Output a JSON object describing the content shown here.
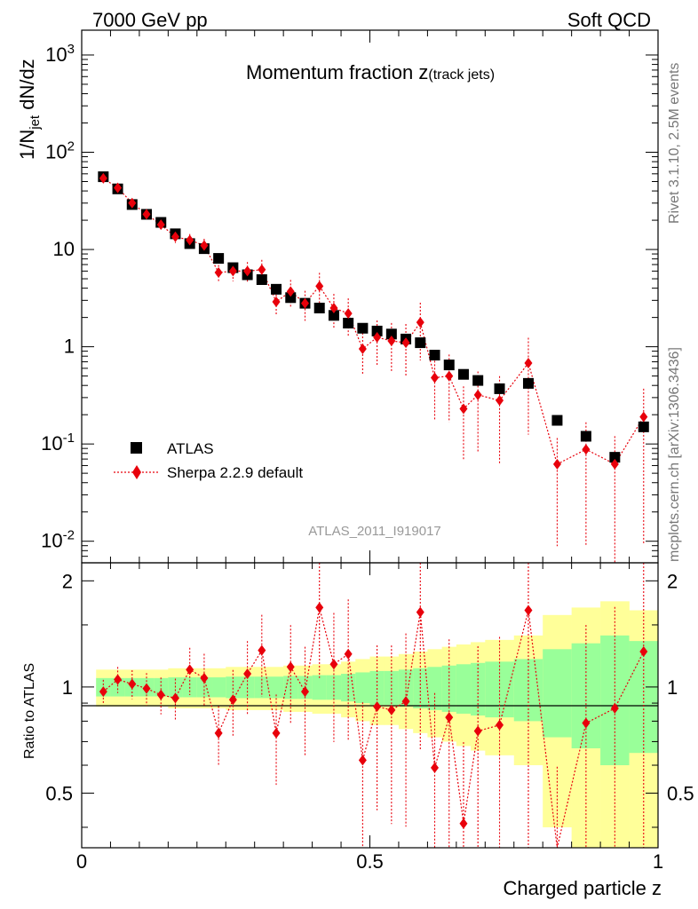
{
  "header": {
    "left": "7000 GeV pp",
    "right": "Soft QCD"
  },
  "side": {
    "rivet": "Rivet 3.1.10,  2.5M events",
    "mcplots": "mcplots.cern.ch [arXiv:1306.3436]"
  },
  "colors": {
    "atlas": "#000000",
    "mc": "#e8000b",
    "band_inner": "#99ff99",
    "band_outer": "#ffff99"
  },
  "chart_data": [
    {
      "type": "scatter",
      "title": "Momentum fraction z(track jets)",
      "title_main": "Momentum fraction z",
      "title_sub": "(track jets)",
      "ylabel": "1/N_jet dN/dz",
      "ylabel_main": "1/N",
      "ylabel_sub": "jet",
      "ylabel_tail": " dN/dz",
      "yscale": "log",
      "xlim": [
        0,
        1
      ],
      "ylim": [
        0.006,
        1800
      ],
      "ytick_labels": [
        "10^-2",
        "10^-1",
        "1",
        "10",
        "10^2",
        "10^3"
      ],
      "watermark": "ATLAS_2011_I919017",
      "legend": {
        "position": "bottom-left",
        "atlas": "ATLAS",
        "mc": "Sherpa 2.2.9 default"
      },
      "x": [
        0.0375,
        0.0625,
        0.0875,
        0.1125,
        0.1375,
        0.1625,
        0.1875,
        0.2125,
        0.2375,
        0.2625,
        0.2875,
        0.3125,
        0.3375,
        0.3625,
        0.3875,
        0.4125,
        0.4375,
        0.4625,
        0.4875,
        0.5125,
        0.5375,
        0.5625,
        0.5875,
        0.6125,
        0.6375,
        0.6625,
        0.6875,
        0.725,
        0.775,
        0.825,
        0.875,
        0.925,
        0.975
      ],
      "series": [
        {
          "name": "ATLAS",
          "values": [
            56,
            42,
            29,
            23,
            19,
            14.5,
            11.5,
            10.2,
            8.1,
            6.5,
            5.5,
            4.9,
            3.9,
            3.2,
            2.8,
            2.5,
            2.1,
            1.75,
            1.55,
            1.45,
            1.35,
            1.2,
            1.1,
            0.82,
            0.65,
            0.52,
            0.45,
            0.37,
            0.42,
            0.175,
            0.12,
            0.073,
            0.15
          ]
        },
        {
          "name": "Sherpa 2.2.9 default",
          "values": [
            54,
            43,
            30,
            23,
            18,
            13.5,
            12.5,
            11,
            5.8,
            6.0,
            6.0,
            6.2,
            2.9,
            3.7,
            2.8,
            4.2,
            2.5,
            2.2,
            0.95,
            1.25,
            1.15,
            1.1,
            1.78,
            0.48,
            0.5,
            0.23,
            0.32,
            0.28,
            0.68,
            0.062,
            0.088,
            0.062,
            0.19
          ]
        }
      ]
    },
    {
      "type": "scatter",
      "ylabel": "Ratio to ATLAS",
      "xlabel": "Charged particle z",
      "xlim": [
        0,
        1
      ],
      "ylim": [
        0.35,
        2.25
      ],
      "ytick_labels": [
        "0.5",
        "1",
        "2"
      ],
      "xtick_labels": [
        "0",
        "0.5",
        "1"
      ],
      "ratio": [
        0.97,
        1.05,
        1.02,
        0.99,
        0.95,
        0.93,
        1.12,
        1.06,
        0.74,
        0.92,
        1.09,
        1.27,
        0.74,
        1.14,
        0.97,
        1.68,
        1.16,
        1.24,
        0.62,
        0.88,
        0.86,
        0.91,
        1.63,
        0.59,
        0.82,
        0.41,
        0.75,
        0.78,
        1.65,
        0.32,
        0.79,
        0.87,
        1.26
      ],
      "band_edges": [
        0.025,
        0.05,
        0.075,
        0.1,
        0.125,
        0.15,
        0.175,
        0.2,
        0.225,
        0.25,
        0.275,
        0.3,
        0.325,
        0.35,
        0.375,
        0.4,
        0.425,
        0.45,
        0.475,
        0.5,
        0.525,
        0.55,
        0.575,
        0.6,
        0.625,
        0.65,
        0.675,
        0.7,
        0.75,
        0.8,
        0.85,
        0.9,
        0.95,
        1.0
      ],
      "band_inner": [
        0.06,
        0.06,
        0.06,
        0.06,
        0.06,
        0.065,
        0.065,
        0.065,
        0.065,
        0.07,
        0.07,
        0.07,
        0.07,
        0.075,
        0.075,
        0.08,
        0.08,
        0.09,
        0.1,
        0.11,
        0.11,
        0.12,
        0.13,
        0.14,
        0.15,
        0.16,
        0.17,
        0.18,
        0.2,
        0.28,
        0.33,
        0.4,
        0.35
      ],
      "band_outer": [
        0.12,
        0.12,
        0.12,
        0.12,
        0.12,
        0.13,
        0.13,
        0.13,
        0.13,
        0.14,
        0.14,
        0.14,
        0.14,
        0.15,
        0.15,
        0.16,
        0.16,
        0.18,
        0.2,
        0.22,
        0.22,
        0.24,
        0.26,
        0.28,
        0.3,
        0.32,
        0.34,
        0.36,
        0.4,
        0.6,
        0.68,
        0.75,
        0.65
      ]
    }
  ]
}
